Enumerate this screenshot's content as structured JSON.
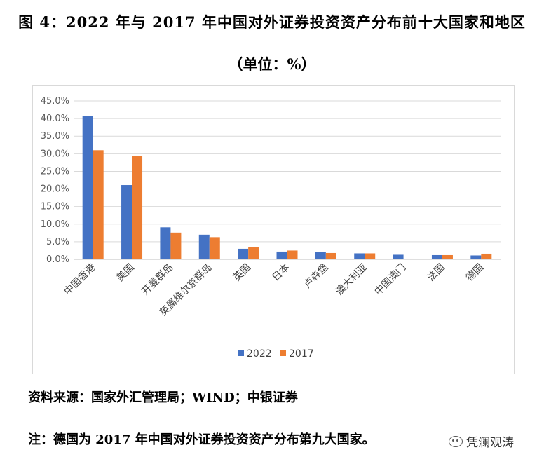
{
  "figure": {
    "title": "图 4：2022 年与 2017 年中国对外证券投资资产分布前十大国家和地区",
    "unit": "（单位：%）"
  },
  "footer": {
    "source": "资料来源：国家外汇管理局；WIND；中银证券",
    "note": "注：德国为 2017 年中国对外证券投资资产分布第九大国家。",
    "watermark": "凭澜观涛",
    "watermark_icon": "wechat-icon"
  },
  "chart_data": {
    "type": "bar",
    "categories": [
      "中国香港",
      "美国",
      "开曼群岛",
      "英属维尔京群岛",
      "英国",
      "日本",
      "卢森堡",
      "澳大利亚",
      "中国澳门",
      "法国",
      "德国"
    ],
    "series": [
      {
        "name": "2022",
        "color": "#4472c4",
        "values": [
          40.8,
          21.1,
          9.1,
          7.0,
          3.0,
          2.2,
          2.0,
          1.7,
          1.3,
          1.2,
          1.1
        ]
      },
      {
        "name": "2017",
        "color": "#ed7d31",
        "values": [
          31.0,
          29.3,
          7.6,
          6.3,
          3.4,
          2.5,
          1.8,
          1.7,
          0.2,
          1.2,
          1.6
        ]
      }
    ],
    "yticks": [
      "0.0%",
      "5.0%",
      "10.0%",
      "15.0%",
      "20.0%",
      "25.0%",
      "30.0%",
      "35.0%",
      "40.0%",
      "45.0%"
    ],
    "ylim": [
      0,
      45
    ],
    "grid": true,
    "legend_position": "bottom"
  }
}
